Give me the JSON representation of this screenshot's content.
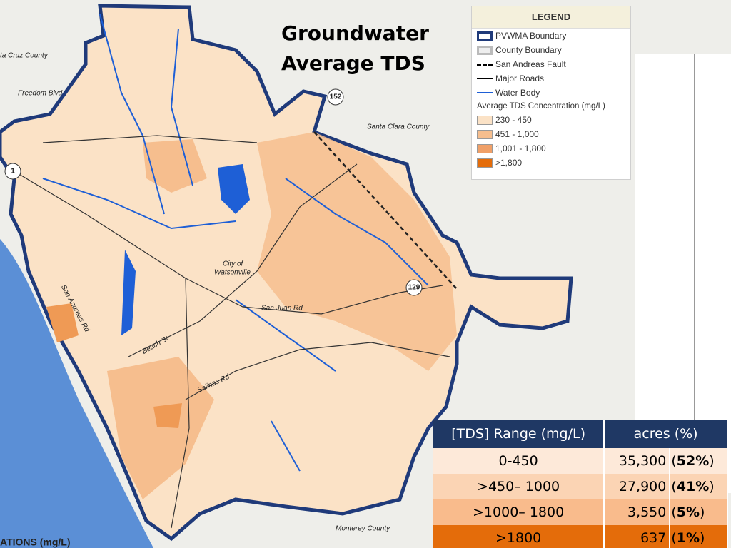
{
  "title": {
    "line1": "Groundwater",
    "line2": "Average TDS"
  },
  "legend": {
    "heading": "LEGEND",
    "items": [
      "PVWMA Boundary",
      "County Boundary",
      "San Andreas Fault",
      "Major Roads",
      "Water Body"
    ],
    "tds_heading": "Average TDS Concentration (mg/L)",
    "tds_classes": [
      "230 - 450",
      "451 - 1,000",
      "1,001 - 1,800",
      ">1,800"
    ]
  },
  "map_labels": {
    "santa_cruz": "ta Cruz County",
    "freedom": "Freedom Blvd",
    "santa_clara": "Santa Clara County",
    "city1": "City of",
    "city2": "Watsonville",
    "san_juan": "San Juan Rd",
    "san_andreas": "San Andreas Rd",
    "beach": "Beach St",
    "salinas": "Salinas Rd",
    "monterey": "Monterey County",
    "hwy152": "152",
    "hwy1": "1",
    "hwy129": "129",
    "footer": "ATIONS (mg/L)"
  },
  "table": {
    "header": [
      "[TDS] Range (mg/L)",
      "acres (%)"
    ],
    "rows": [
      {
        "range": "0-450",
        "acres": "35,300",
        "percent": "52%"
      },
      {
        "range": ">450– 1000",
        "acres": "27,900",
        "percent": "41%"
      },
      {
        "range": ">1000– 1800",
        "acres": "3,550",
        "percent": "5%"
      },
      {
        "range": ">1800",
        "acres": "637",
        "percent": "1%"
      }
    ]
  }
}
